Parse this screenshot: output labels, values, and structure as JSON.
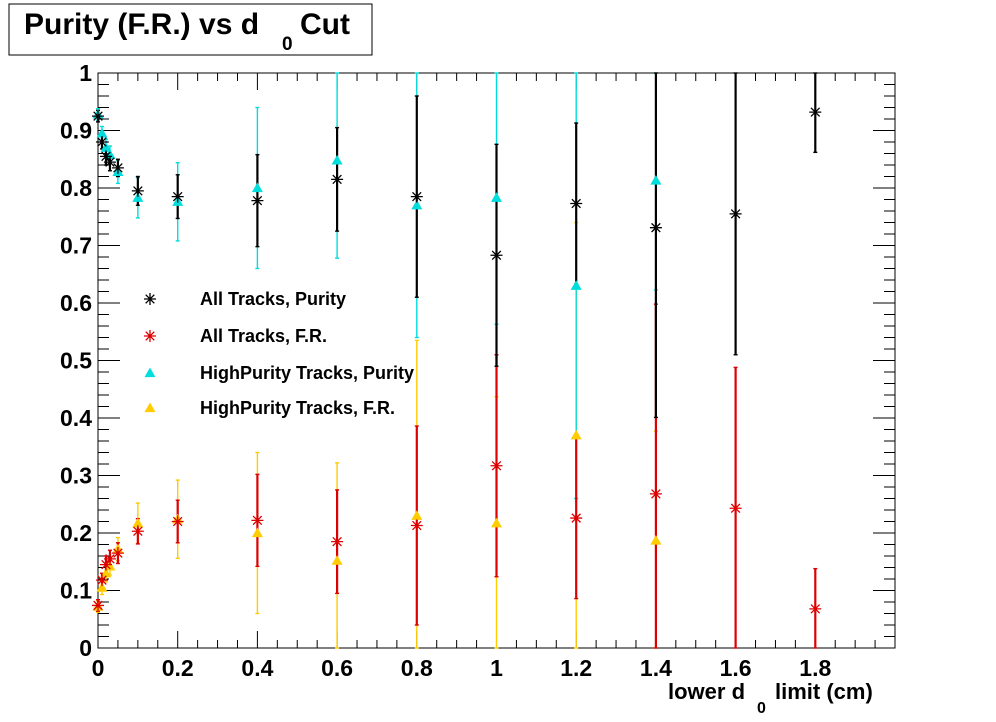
{
  "title": {
    "main": "Purity (F.R.) vs d",
    "sub": "0",
    "tail": "Cut"
  },
  "chart_data": {
    "type": "scatter",
    "xlabel": {
      "main": "lower d",
      "sub": "0",
      "tail": "limit (cm)"
    },
    "ylabel": "",
    "xlim": [
      0,
      2.0
    ],
    "ylim": [
      0,
      1.0
    ],
    "xticks": [
      "0",
      "0.2",
      "0.4",
      "0.6",
      "0.8",
      "1",
      "1.2",
      "1.4",
      "1.6",
      "1.8"
    ],
    "yticks": [
      "0",
      "0.1",
      "0.2",
      "0.3",
      "0.4",
      "0.5",
      "0.6",
      "0.7",
      "0.8",
      "0.9",
      "1"
    ],
    "grid": false,
    "legend_position": "center-left",
    "series": [
      {
        "name": "All Tracks, Purity",
        "color": "#000000",
        "marker": "star",
        "points": [
          {
            "x": 0.0,
            "y": 0.925,
            "err": 0.01
          },
          {
            "x": 0.01,
            "y": 0.88,
            "err": 0.012
          },
          {
            "x": 0.02,
            "y": 0.855,
            "err": 0.015
          },
          {
            "x": 0.03,
            "y": 0.845,
            "err": 0.015
          },
          {
            "x": 0.05,
            "y": 0.835,
            "err": 0.015
          },
          {
            "x": 0.1,
            "y": 0.795,
            "err": 0.025
          },
          {
            "x": 0.2,
            "y": 0.785,
            "err": 0.038
          },
          {
            "x": 0.4,
            "y": 0.778,
            "err": 0.08
          },
          {
            "x": 0.6,
            "y": 0.815,
            "err": 0.09
          },
          {
            "x": 0.8,
            "y": 0.785,
            "err": 0.175
          },
          {
            "x": 1.0,
            "y": 0.683,
            "err": 0.193
          },
          {
            "x": 1.2,
            "y": 0.773,
            "err": 0.14
          },
          {
            "x": 1.4,
            "y": 0.731,
            "err": 0.33
          },
          {
            "x": 1.6,
            "y": 0.755,
            "err": 0.245
          },
          {
            "x": 1.8,
            "y": 0.932,
            "err": 0.07
          }
        ]
      },
      {
        "name": "All Tracks, F.R.",
        "color": "#dd0000",
        "marker": "star",
        "points": [
          {
            "x": 0.0,
            "y": 0.074,
            "err": 0.01
          },
          {
            "x": 0.01,
            "y": 0.118,
            "err": 0.012
          },
          {
            "x": 0.02,
            "y": 0.145,
            "err": 0.015
          },
          {
            "x": 0.03,
            "y": 0.155,
            "err": 0.015
          },
          {
            "x": 0.05,
            "y": 0.165,
            "err": 0.018
          },
          {
            "x": 0.1,
            "y": 0.203,
            "err": 0.022
          },
          {
            "x": 0.2,
            "y": 0.22,
            "err": 0.037
          },
          {
            "x": 0.4,
            "y": 0.222,
            "err": 0.08
          },
          {
            "x": 0.6,
            "y": 0.185,
            "err": 0.09
          },
          {
            "x": 0.8,
            "y": 0.213,
            "err": 0.173
          },
          {
            "x": 1.0,
            "y": 0.317,
            "err": 0.193
          },
          {
            "x": 1.2,
            "y": 0.226,
            "err": 0.14
          },
          {
            "x": 1.4,
            "y": 0.268,
            "err": 0.33
          },
          {
            "x": 1.6,
            "y": 0.243,
            "err": 0.245
          },
          {
            "x": 1.8,
            "y": 0.068,
            "err": 0.07
          }
        ]
      },
      {
        "name": "HighPurity Tracks, Purity",
        "color": "#00dddd",
        "marker": "triangle",
        "points": [
          {
            "x": 0.0,
            "y": 0.928,
            "err": 0.01
          },
          {
            "x": 0.01,
            "y": 0.895,
            "err": 0.012
          },
          {
            "x": 0.02,
            "y": 0.87,
            "err": 0.015
          },
          {
            "x": 0.03,
            "y": 0.858,
            "err": 0.015
          },
          {
            "x": 0.05,
            "y": 0.828,
            "err": 0.02
          },
          {
            "x": 0.1,
            "y": 0.783,
            "err": 0.035
          },
          {
            "x": 0.2,
            "y": 0.776,
            "err": 0.068
          },
          {
            "x": 0.4,
            "y": 0.8,
            "err": 0.14
          },
          {
            "x": 0.6,
            "y": 0.848,
            "err": 0.17
          },
          {
            "x": 0.8,
            "y": 0.77,
            "err": 0.23
          },
          {
            "x": 1.0,
            "y": 0.783,
            "err": 0.22
          },
          {
            "x": 1.2,
            "y": 0.63,
            "err": 0.37
          },
          {
            "x": 1.4,
            "y": 0.813,
            "err": 0.19
          }
        ]
      },
      {
        "name": "HighPurity Tracks, F.R.",
        "color": "#ffcc00",
        "marker": "triangle",
        "points": [
          {
            "x": 0.0,
            "y": 0.072,
            "err": 0.01
          },
          {
            "x": 0.01,
            "y": 0.105,
            "err": 0.012
          },
          {
            "x": 0.02,
            "y": 0.13,
            "err": 0.015
          },
          {
            "x": 0.03,
            "y": 0.142,
            "err": 0.015
          },
          {
            "x": 0.05,
            "y": 0.172,
            "err": 0.02
          },
          {
            "x": 0.1,
            "y": 0.217,
            "err": 0.035
          },
          {
            "x": 0.2,
            "y": 0.224,
            "err": 0.068
          },
          {
            "x": 0.4,
            "y": 0.2,
            "err": 0.14
          },
          {
            "x": 0.6,
            "y": 0.152,
            "err": 0.17
          },
          {
            "x": 0.8,
            "y": 0.23,
            "err": 0.305
          },
          {
            "x": 1.0,
            "y": 0.217,
            "err": 0.22
          },
          {
            "x": 1.2,
            "y": 0.37,
            "err": 0.37
          },
          {
            "x": 1.4,
            "y": 0.187,
            "err": 0.19
          }
        ]
      }
    ]
  }
}
